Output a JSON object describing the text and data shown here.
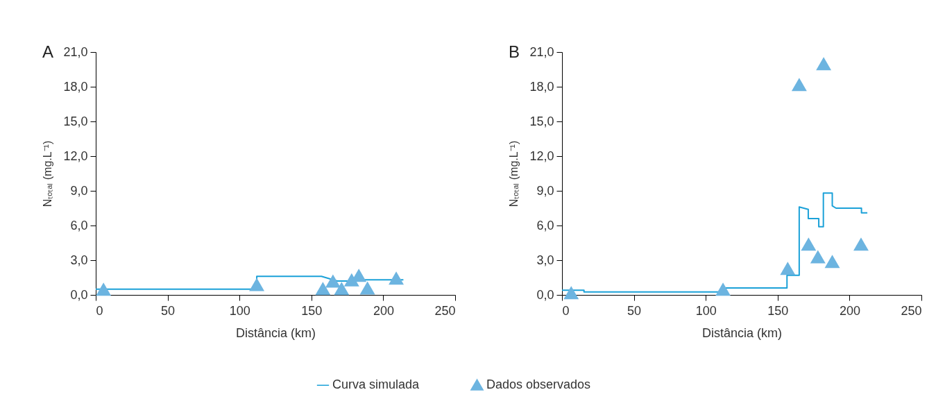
{
  "chart_data": [
    {
      "type": "line",
      "title": "A",
      "xlabel": "Distância (km)",
      "ylabel": "Nₜₒₜₐₗ (mg.L⁻¹)",
      "xlim": [
        0,
        250
      ],
      "xticks": [
        0,
        50,
        100,
        150,
        200,
        250
      ],
      "ylim": [
        0,
        21
      ],
      "yticks": [
        {
          "value": 0,
          "label": "0,0"
        },
        {
          "value": 3,
          "label": "3,0"
        },
        {
          "value": 6,
          "label": "6,0"
        },
        {
          "value": 9,
          "label": "9,0"
        },
        {
          "value": 12,
          "label": "12,0"
        },
        {
          "value": 15,
          "label": "15,0"
        },
        {
          "value": 18,
          "label": "18,0"
        },
        {
          "value": 21,
          "label": "21,0"
        }
      ],
      "grid": false,
      "legend": "bottom",
      "series": [
        {
          "name": "Curva simulada",
          "type": "line",
          "color": "#1ba1d8",
          "x": [
            0,
            112,
            112,
            157,
            168,
            182,
            182,
            214
          ],
          "values": [
            0.5,
            0.5,
            1.6,
            1.6,
            1.2,
            1.2,
            1.3,
            1.3
          ]
        },
        {
          "name": "Dados observados",
          "type": "scatter",
          "marker": "triangle",
          "color": "#6cb4e0",
          "x": [
            5.4,
            112,
            158,
            165,
            171,
            178,
            183,
            189,
            209
          ],
          "values": [
            0.5,
            0.9,
            0.55,
            1.2,
            0.55,
            1.3,
            1.7,
            0.6,
            1.45
          ]
        }
      ]
    },
    {
      "type": "line",
      "title": "B",
      "xlabel": "Distância (km)",
      "ylabel": "Nₜₒₜₐₗ (mg.L⁻¹)",
      "xlim": [
        0,
        250
      ],
      "xticks": [
        0,
        50,
        100,
        150,
        200,
        250
      ],
      "ylim": [
        0,
        21
      ],
      "yticks": [
        {
          "value": 0,
          "label": "0,0"
        },
        {
          "value": 3,
          "label": "3,0"
        },
        {
          "value": 6,
          "label": "6,0"
        },
        {
          "value": 9,
          "label": "9,0"
        },
        {
          "value": 12,
          "label": "12,0"
        },
        {
          "value": 15,
          "label": "15,0"
        },
        {
          "value": 18,
          "label": "18,0"
        },
        {
          "value": 21,
          "label": "21,0"
        }
      ],
      "grid": false,
      "legend": "bottom",
      "series": [
        {
          "name": "Curva simulada",
          "type": "line",
          "color": "#1ba1d8",
          "x": [
            0,
            15.3,
            15.3,
            112.5,
            112.5,
            156.5,
            156.5,
            165,
            165,
            171.3,
            171.3,
            178.6,
            178.6,
            181.8,
            181.8,
            188,
            188,
            190.6,
            208.3,
            208.3,
            212.4
          ],
          "values": [
            0.4,
            0.4,
            0.25,
            0.25,
            0.6,
            0.6,
            1.7,
            1.7,
            7.6,
            7.4,
            6.6,
            6.6,
            5.9,
            5.9,
            8.8,
            8.8,
            7.7,
            7.5,
            7.5,
            7.1,
            7.1
          ]
        },
        {
          "name": "Dados observados",
          "type": "scatter",
          "marker": "triangle",
          "color": "#6cb4e0",
          "x": [
            6.4,
            112,
            157,
            165,
            171.5,
            178,
            182,
            188,
            208
          ],
          "values": [
            0.2,
            0.5,
            2.3,
            18.2,
            4.4,
            3.3,
            20.0,
            2.9,
            4.4
          ]
        }
      ]
    }
  ]
}
